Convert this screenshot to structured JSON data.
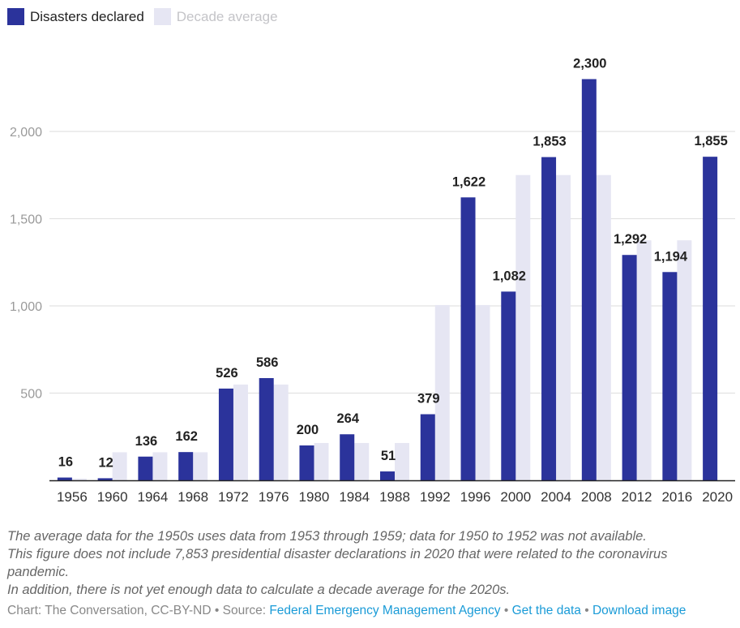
{
  "legend": {
    "items": [
      {
        "label": "Disasters declared",
        "color": "#2b339b"
      },
      {
        "label": "Decade average",
        "color": "#e6e6f3"
      }
    ]
  },
  "chart_data": {
    "type": "bar",
    "title": "",
    "xlabel": "",
    "ylabel": "",
    "ylim": [
      0,
      2400
    ],
    "yticks": [
      500,
      1000,
      1500,
      2000
    ],
    "ytick_labels": [
      "500",
      "1,000",
      "1,500",
      "2,000"
    ],
    "grid": true,
    "legend_position": "top-left",
    "categories": [
      "1956",
      "1960",
      "1964",
      "1968",
      "1972",
      "1976",
      "1980",
      "1984",
      "1988",
      "1992",
      "1996",
      "2000",
      "2004",
      "2008",
      "2012",
      "2016",
      "2020"
    ],
    "series": [
      {
        "name": "Disasters declared",
        "color": "#2b339b",
        "values": [
          16,
          12,
          136,
          162,
          526,
          586,
          200,
          264,
          51,
          379,
          1622,
          1082,
          1853,
          2300,
          1292,
          1194,
          1855
        ],
        "labels": [
          "16",
          "12",
          "136",
          "162",
          "526",
          "586",
          "200",
          "264",
          "51",
          "379",
          "1,622",
          "1,082",
          "1,853",
          "2,300",
          "1,292",
          "1,194",
          "1,855"
        ]
      },
      {
        "name": "Decade average",
        "color": "#e6e6f3",
        "values": [
          10,
          161,
          161,
          161,
          549,
          549,
          214,
          214,
          214,
          1005,
          1005,
          1750,
          1750,
          1750,
          1376,
          1376,
          null
        ]
      }
    ]
  },
  "notes": [
    "The average data for the 1950s uses data from 1953 through 1959; data for 1950 to 1952 was not available.",
    "This figure does not include 7,853 presidential disaster declarations in 2020 that were related to the coronavirus pandemic.",
    "In addition, there is not yet enough data to calculate a decade average for the 2020s."
  ],
  "footer": {
    "credit": "Chart: The Conversation, CC-BY-ND",
    "separator": "•",
    "source_prefix": "Source:",
    "source_link": "Federal Emergency Management Agency",
    "get_data": "Get the data",
    "download": "Download image"
  }
}
